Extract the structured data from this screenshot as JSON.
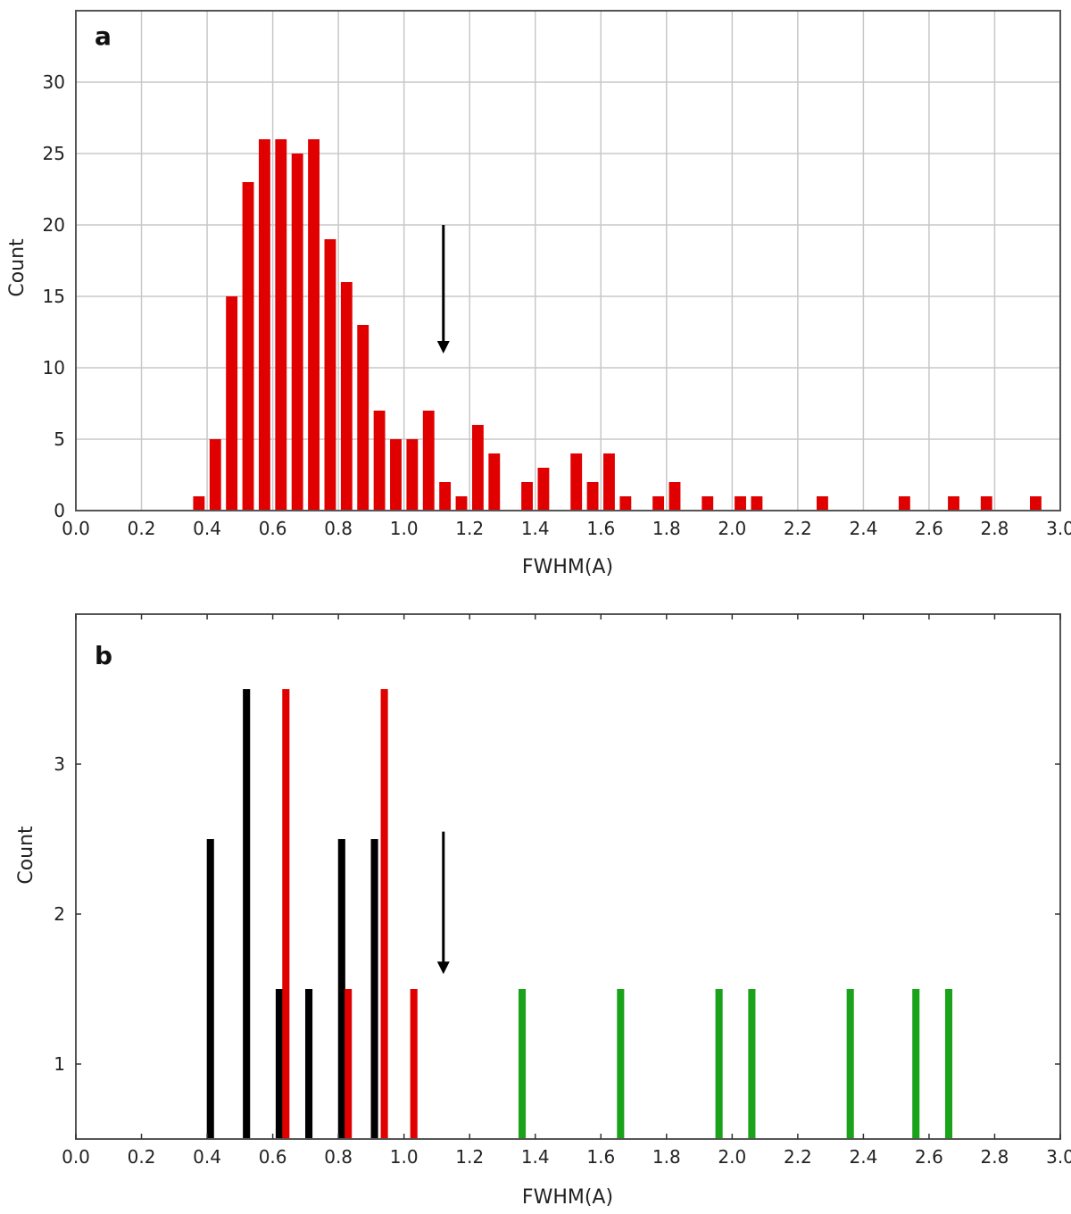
{
  "chart_data": [
    {
      "type": "bar",
      "panel_label": "a",
      "xlabel": "FWHM(A)",
      "ylabel": "Count",
      "xlim": [
        0.0,
        3.0
      ],
      "ylim": [
        0,
        35
      ],
      "grid": true,
      "x_ticks": [
        "0.0",
        "0.2",
        "0.4",
        "0.6",
        "0.8",
        "1.0",
        "1.2",
        "1.4",
        "1.6",
        "1.8",
        "2.0",
        "2.2",
        "2.4",
        "2.6",
        "2.8",
        "3.0"
      ],
      "y_ticks": [
        "0",
        "5",
        "10",
        "15",
        "20",
        "25",
        "30"
      ],
      "bar_color": "#e00000",
      "bar_width": 0.035,
      "bars": [
        {
          "x": 0.375,
          "y": 1
        },
        {
          "x": 0.425,
          "y": 5
        },
        {
          "x": 0.475,
          "y": 15
        },
        {
          "x": 0.525,
          "y": 23
        },
        {
          "x": 0.575,
          "y": 26
        },
        {
          "x": 0.625,
          "y": 26
        },
        {
          "x": 0.675,
          "y": 25
        },
        {
          "x": 0.725,
          "y": 26
        },
        {
          "x": 0.775,
          "y": 19
        },
        {
          "x": 0.825,
          "y": 16
        },
        {
          "x": 0.875,
          "y": 13
        },
        {
          "x": 0.925,
          "y": 7
        },
        {
          "x": 0.975,
          "y": 5
        },
        {
          "x": 1.025,
          "y": 5
        },
        {
          "x": 1.075,
          "y": 7
        },
        {
          "x": 1.125,
          "y": 2
        },
        {
          "x": 1.175,
          "y": 1
        },
        {
          "x": 1.225,
          "y": 6
        },
        {
          "x": 1.275,
          "y": 4
        },
        {
          "x": 1.375,
          "y": 2
        },
        {
          "x": 1.425,
          "y": 3
        },
        {
          "x": 1.525,
          "y": 4
        },
        {
          "x": 1.575,
          "y": 2
        },
        {
          "x": 1.625,
          "y": 4
        },
        {
          "x": 1.675,
          "y": 1
        },
        {
          "x": 1.775,
          "y": 1
        },
        {
          "x": 1.825,
          "y": 2
        },
        {
          "x": 1.925,
          "y": 1
        },
        {
          "x": 2.025,
          "y": 1
        },
        {
          "x": 2.075,
          "y": 1
        },
        {
          "x": 2.275,
          "y": 1
        },
        {
          "x": 2.525,
          "y": 1
        },
        {
          "x": 2.675,
          "y": 1
        },
        {
          "x": 2.775,
          "y": 1
        },
        {
          "x": 2.925,
          "y": 1
        }
      ],
      "arrow": {
        "x": 1.12,
        "y_from": 20,
        "y_to": 11
      }
    },
    {
      "type": "bar",
      "panel_label": "b",
      "xlabel": "FWHM(A)",
      "ylabel": "Count",
      "xlim": [
        0.0,
        3.0
      ],
      "ylim": [
        0.5,
        4.0
      ],
      "grid": false,
      "x_ticks": [
        "0.0",
        "0.2",
        "0.4",
        "0.6",
        "0.8",
        "1.0",
        "1.2",
        "1.4",
        "1.6",
        "1.8",
        "2.0",
        "2.2",
        "2.4",
        "2.6",
        "2.8",
        "3.0"
      ],
      "y_ticks": [
        "1",
        "2",
        "3"
      ],
      "bar_width": 0.022,
      "series": [
        {
          "color": "#000000",
          "bars": [
            {
              "x": 0.41,
              "y": 2.5
            },
            {
              "x": 0.52,
              "y": 3.5
            },
            {
              "x": 0.62,
              "y": 1.5
            },
            {
              "x": 0.71,
              "y": 1.5
            },
            {
              "x": 0.81,
              "y": 2.5
            },
            {
              "x": 0.91,
              "y": 2.5
            }
          ]
        },
        {
          "color": "#e00000",
          "bars": [
            {
              "x": 0.64,
              "y": 3.5
            },
            {
              "x": 0.83,
              "y": 1.5
            },
            {
              "x": 0.94,
              "y": 3.5
            },
            {
              "x": 1.03,
              "y": 1.5
            }
          ]
        },
        {
          "color": "#1aa31a",
          "bars": [
            {
              "x": 1.36,
              "y": 1.5
            },
            {
              "x": 1.66,
              "y": 1.5
            },
            {
              "x": 1.96,
              "y": 1.5
            },
            {
              "x": 2.06,
              "y": 1.5
            },
            {
              "x": 2.36,
              "y": 1.5
            },
            {
              "x": 2.56,
              "y": 1.5
            },
            {
              "x": 2.66,
              "y": 1.5
            }
          ]
        }
      ],
      "arrow": {
        "x": 1.12,
        "y_from": 2.55,
        "y_to": 1.6
      }
    }
  ]
}
